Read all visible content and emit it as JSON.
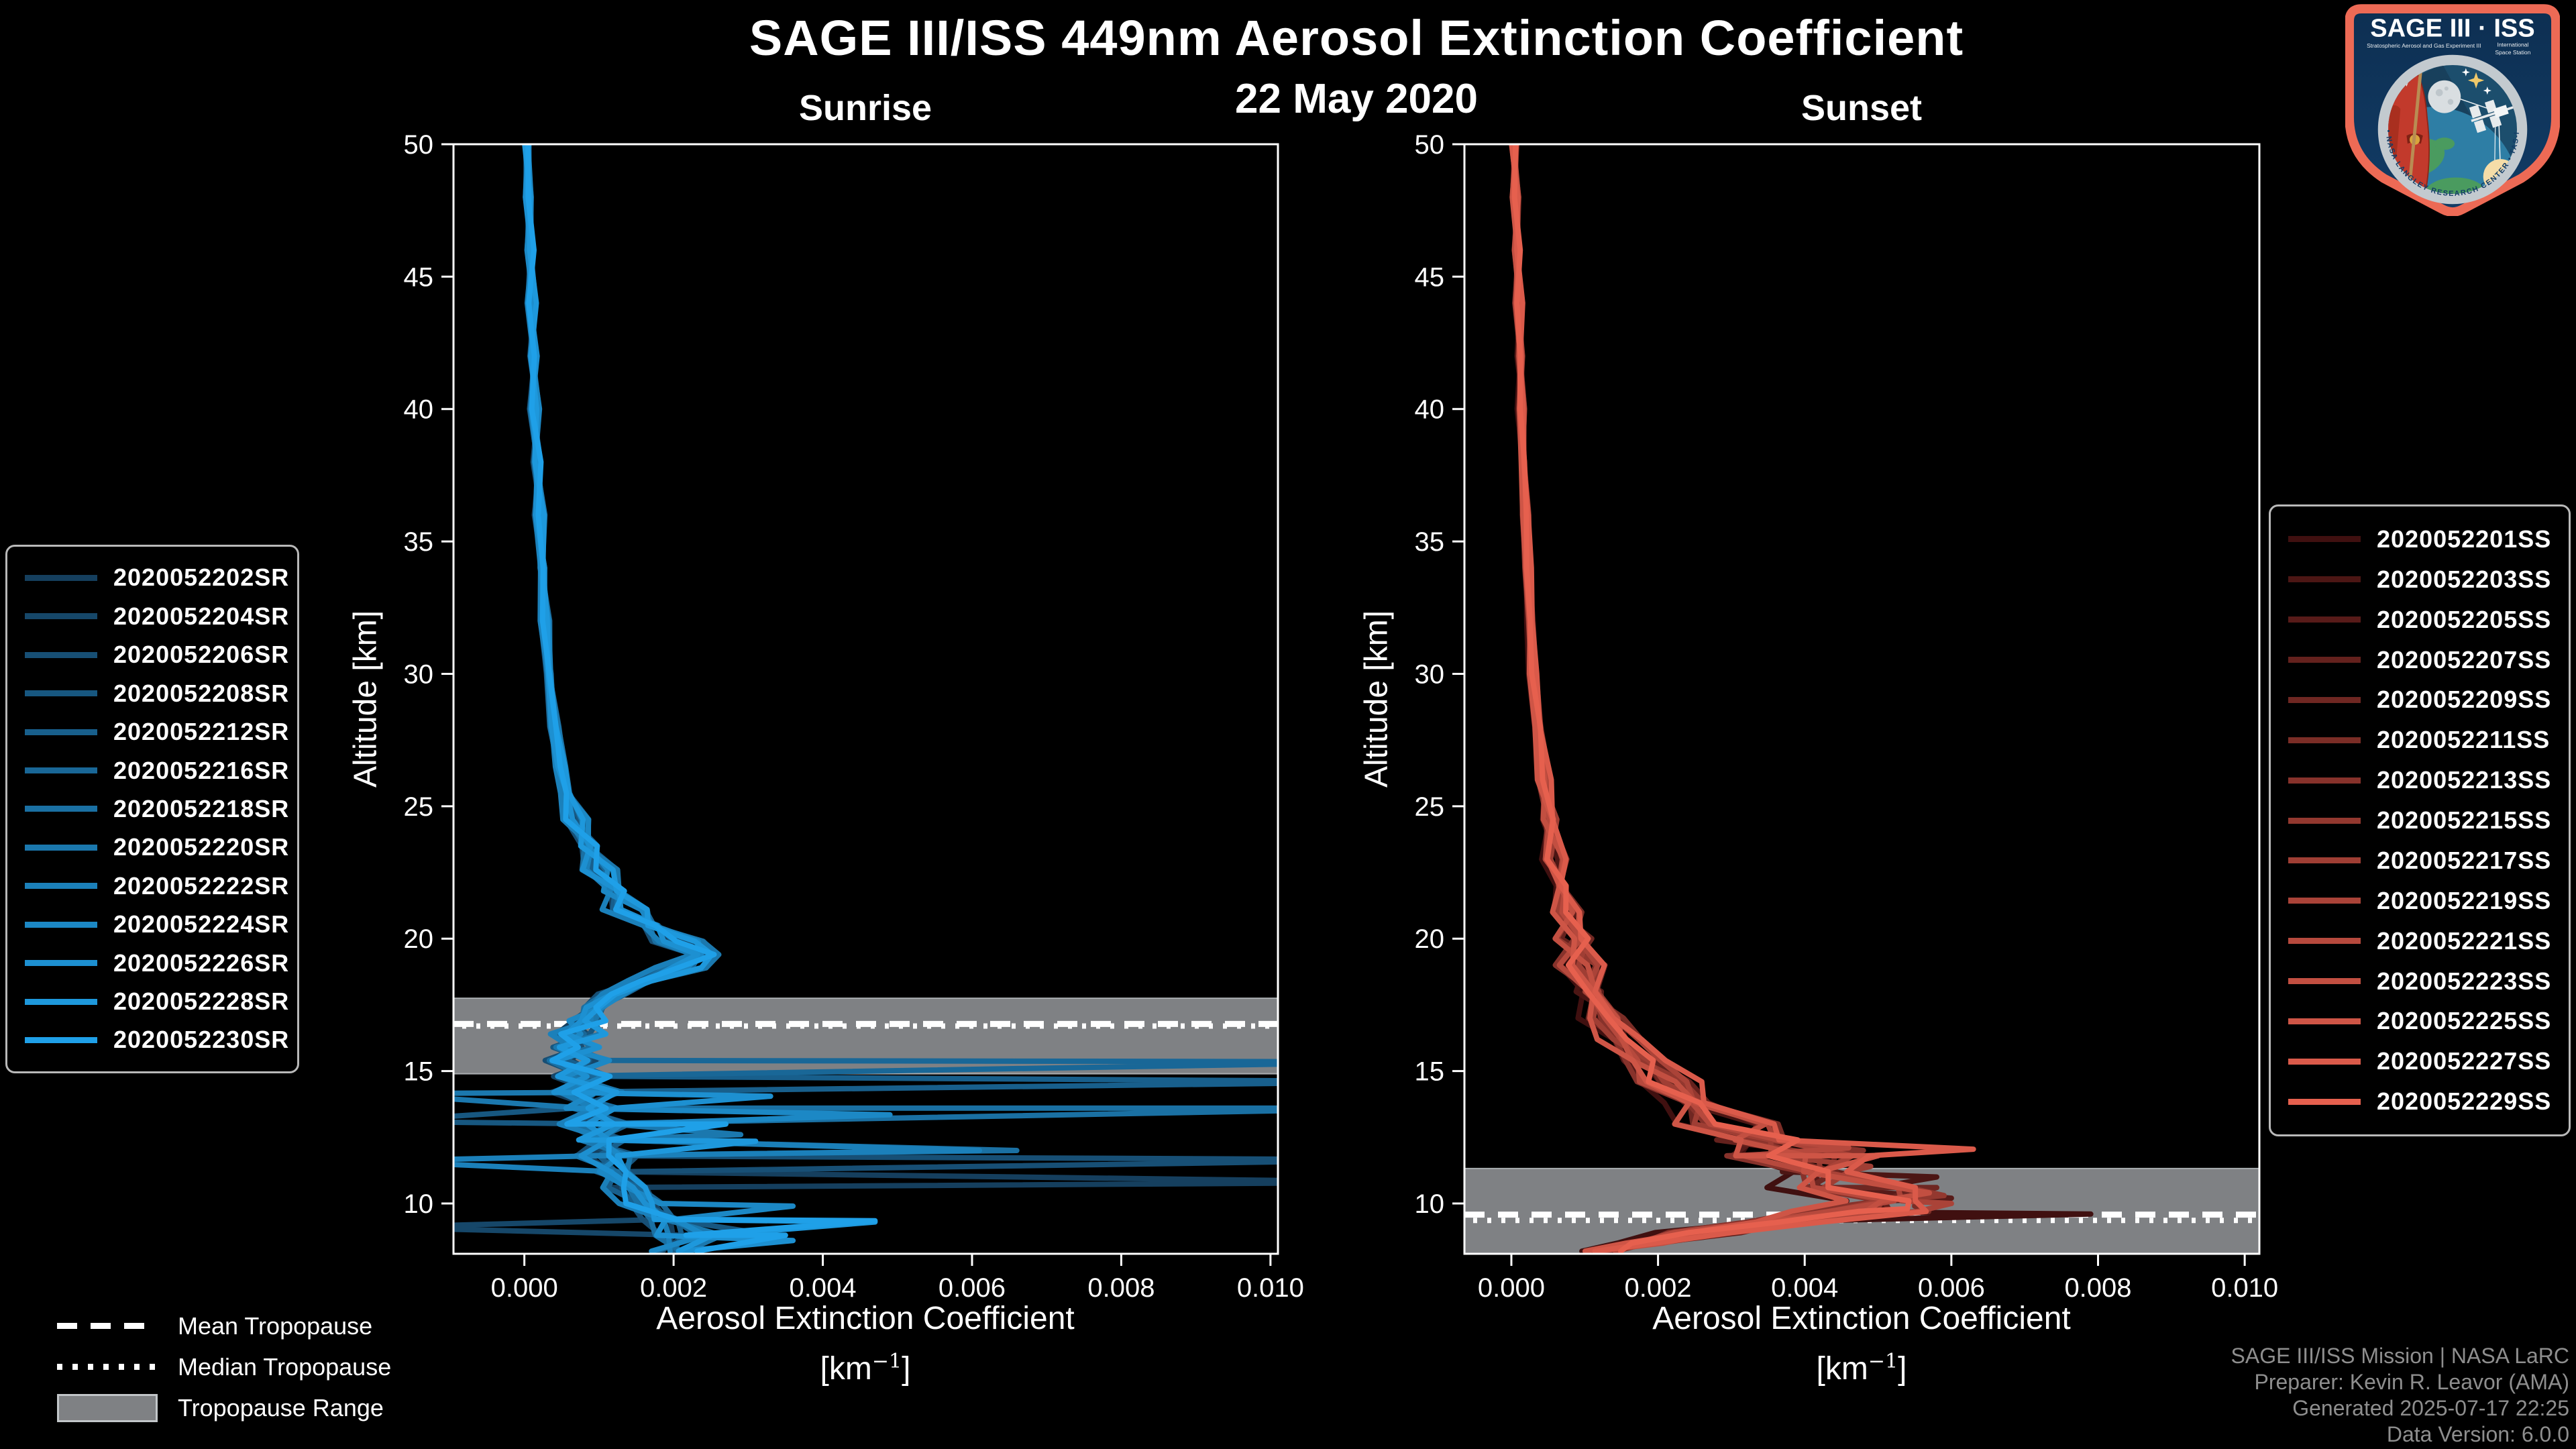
{
  "header": {
    "title": "SAGE III/ISS 449nm Aerosol Extinction Coefficient",
    "subtitle": "22 May 2020"
  },
  "axis": {
    "ylabel": "Altitude [km]",
    "xlabel": "Aerosol Extinction Coefficient",
    "unit_prefix": "[km",
    "unit_sup": "−1",
    "unit_suffix": "]"
  },
  "trop_legend": {
    "mean": "Mean Tropopause",
    "median": "Median Tropopause",
    "range": "Tropopause Range"
  },
  "footer": {
    "lines": [
      "SAGE III/ISS Mission | NASA LaRC",
      "Preparer: Kevin R. Leavor (AMA)",
      "Generated 2025-07-17 22:25",
      "Data Version: 6.0.0"
    ],
    "color": "#8e8e8e"
  },
  "logo": {
    "name": "SAGE III ISS mission patch",
    "line1": "SAGE III · ISS",
    "sub_left": "Stratospheric Aerosol and Gas Experiment III",
    "sub_right1": "International",
    "sub_right2": "Space Station",
    "ring_text": "BALL  •  NASA LANGLEY RESEARCH CENTER  •  TAS-I  •  ESA"
  },
  "colors": {
    "background": "#000000",
    "frame": "#ffffff",
    "band": "#7f8184",
    "band_edge": "#a9adb0",
    "trop_line": "#ffffff",
    "legend_border": "#b9b9b9",
    "footer_text": "#8e8e8e"
  },
  "chart_data": {
    "type": "line",
    "title": "SAGE III/ISS 449nm Aerosol Extinction Coefficient",
    "subtitle": "22 May 2020",
    "xlabel": "Aerosol Extinction Coefficient [km⁻¹]",
    "ylabel": "Altitude [km]",
    "ylim": [
      8.1,
      50
    ],
    "yticks": [
      10,
      15,
      20,
      25,
      30,
      35,
      40,
      45,
      50
    ],
    "xticks": {
      "values": [
        0,
        0.002,
        0.004,
        0.006,
        0.008,
        0.01
      ],
      "labels": [
        "0.000",
        "0.002",
        "0.004",
        "0.006",
        "0.008",
        "0.010"
      ]
    },
    "grid": false,
    "panels": [
      {
        "id": "sunrise",
        "title": "Sunrise",
        "xlim": [
          -0.00095,
          0.0101
        ],
        "tropopause": {
          "mean": 16.78,
          "median": 16.7,
          "range": [
            14.9,
            17.75
          ]
        },
        "amp_zones": [
          [
            25,
            4e-05
          ],
          [
            17,
            0.00013
          ],
          [
            -10,
            0.0003
          ]
        ],
        "base_profile": [
          [
            50,
            4e-05
          ],
          [
            48,
            6e-05
          ],
          [
            46,
            8e-05
          ],
          [
            44,
            0.0001
          ],
          [
            42,
            0.00012
          ],
          [
            40,
            0.00014
          ],
          [
            38,
            0.00017
          ],
          [
            36,
            0.0002
          ],
          [
            34,
            0.00024
          ],
          [
            32,
            0.00028
          ],
          [
            30,
            0.00033
          ],
          [
            28,
            0.0004
          ],
          [
            26.5,
            0.00048
          ],
          [
            25.5,
            0.00056
          ],
          [
            24.5,
            0.0007
          ],
          [
            23.5,
            0.00086
          ],
          [
            22.6,
            0.001
          ],
          [
            21.8,
            0.0012
          ],
          [
            21.1,
            0.0014
          ],
          [
            20.5,
            0.0017
          ],
          [
            19.9,
            0.0021
          ],
          [
            19.4,
            0.0024
          ],
          [
            18.9,
            0.0021
          ],
          [
            18.4,
            0.0016
          ],
          [
            17.9,
            0.0012
          ],
          [
            17.4,
            0.00095
          ],
          [
            16.9,
            0.0008
          ],
          [
            16.4,
            0.0007
          ],
          [
            15.9,
            0.00065
          ],
          [
            15.4,
            0.0007
          ],
          [
            14.8,
            0.00075
          ],
          [
            14.2,
            0.0008
          ],
          [
            13.6,
            0.0009
          ],
          [
            13,
            0.00095
          ],
          [
            12.4,
            0.001
          ],
          [
            11.8,
            0.0011
          ],
          [
            11.2,
            0.0012
          ],
          [
            10.6,
            0.0014
          ],
          [
            10,
            0.0016
          ],
          [
            9.4,
            0.0019
          ],
          [
            8.8,
            0.0022
          ],
          [
            8.2,
            0.002
          ]
        ],
        "series": [
          {
            "label": "2020052202SR",
            "color": "#153F5E",
            "mult": 0.94,
            "seed": 1,
            "spikes": [
              [
                10.8,
                0.012
              ]
            ]
          },
          {
            "label": "2020052204SR",
            "color": "#164769",
            "mult": 1.02,
            "seed": 2,
            "spikes": [
              [
                9.1,
                -0.002
              ]
            ]
          },
          {
            "label": "2020052206SR",
            "color": "#174F75",
            "mult": 0.9,
            "seed": 3,
            "spikes": [
              [
                11.65,
                0.012
              ]
            ]
          },
          {
            "label": "2020052208SR",
            "color": "#175780",
            "mult": 1.08,
            "seed": 4,
            "spikes": [
              [
                13.1,
                -0.002
              ],
              [
                8.9,
                0.0031
              ]
            ]
          },
          {
            "label": "2020052212SR",
            "color": "#185F8C",
            "mult": 0.97,
            "seed": 5,
            "spikes": [
              [
                14.6,
                0.012
              ]
            ]
          },
          {
            "label": "2020052216SR",
            "color": "#196797",
            "mult": 1.05,
            "seed": 6,
            "spikes": [
              [
                15.35,
                0.012
              ]
            ]
          },
          {
            "label": "2020052218SR",
            "color": "#1A70A3",
            "mult": 0.92,
            "seed": 7,
            "spikes": [
              [
                13.6,
                0.012
              ],
              [
                12.0,
                0.0066
              ]
            ]
          },
          {
            "label": "2020052220SR",
            "color": "#1B78AE",
            "mult": 1.1,
            "seed": 8,
            "spikes": [
              [
                14.15,
                -0.002
              ],
              [
                12.6,
                0.0029
              ]
            ]
          },
          {
            "label": "2020052222SR",
            "color": "#1B80BA",
            "mult": 0.88,
            "seed": 9,
            "spikes": [
              [
                12.0,
                0.0061
              ],
              [
                11.6,
                -0.002
              ]
            ]
          },
          {
            "label": "2020052224SR",
            "color": "#1C88C5",
            "mult": 1.04,
            "seed": 10,
            "spikes": [
              [
                13.35,
                0.0049
              ],
              [
                9.9,
                0.0036
              ]
            ]
          },
          {
            "label": "2020052226SR",
            "color": "#1D90D1",
            "mult": 0.96,
            "seed": 11,
            "spikes": [
              [
                14.05,
                0.0033
              ],
              [
                8.6,
                0.0036
              ]
            ]
          },
          {
            "label": "2020052228SR",
            "color": "#1E98DC",
            "mult": 1.07,
            "seed": 12,
            "spikes": [
              [
                12.35,
                0.0031
              ],
              [
                9.3,
                0.0047
              ]
            ]
          },
          {
            "label": "2020052230SR",
            "color": "#1FA0E8",
            "mult": 1.0,
            "seed": 13,
            "spikes": [
              [
                13.0,
                0.0027
              ],
              [
                9.35,
                0.0047
              ],
              [
                8.8,
                0.0035
              ]
            ]
          }
        ]
      },
      {
        "id": "sunset",
        "title": "Sunset",
        "xlim": [
          -0.00064,
          0.0102
        ],
        "tropopause": {
          "mean": 9.58,
          "median": 9.36,
          "range": [
            8.0,
            11.32
          ]
        },
        "amp_zones": [
          [
            25,
            3e-05
          ],
          [
            20,
            8e-05
          ],
          [
            13,
            0.00022
          ],
          [
            -10,
            0.00035
          ]
        ],
        "base_profile": [
          [
            50,
            4e-05
          ],
          [
            48,
            6e-05
          ],
          [
            46,
            8e-05
          ],
          [
            44,
            0.0001
          ],
          [
            42,
            0.00012
          ],
          [
            40,
            0.00014
          ],
          [
            38,
            0.00016
          ],
          [
            36,
            0.00019
          ],
          [
            34,
            0.00022
          ],
          [
            32,
            0.00026
          ],
          [
            30,
            0.0003
          ],
          [
            28,
            0.00036
          ],
          [
            26,
            0.00044
          ],
          [
            24.5,
            0.00052
          ],
          [
            23,
            0.0006
          ],
          [
            22,
            0.00068
          ],
          [
            21,
            0.00076
          ],
          [
            20,
            0.00085
          ],
          [
            19,
            0.00095
          ],
          [
            18,
            0.0011
          ],
          [
            17,
            0.0013
          ],
          [
            16.2,
            0.0015
          ],
          [
            15.4,
            0.0018
          ],
          [
            14.6,
            0.0021
          ],
          [
            13.8,
            0.0025
          ],
          [
            13,
            0.003
          ],
          [
            12.4,
            0.0034
          ],
          [
            11.8,
            0.0038
          ],
          [
            11.2,
            0.0042
          ],
          [
            10.6,
            0.0047
          ],
          [
            10.1,
            0.0051
          ],
          [
            9.7,
            0.0047
          ],
          [
            9.3,
            0.0036
          ],
          [
            8.9,
            0.0026
          ],
          [
            8.5,
            0.0018
          ],
          [
            8.2,
            0.0012
          ]
        ],
        "series": [
          {
            "label": "2020052201SS",
            "color": "#401010",
            "mult": 0.85,
            "seed": 21,
            "spikes": [
              [
                9.6,
                0.0079
              ]
            ]
          },
          {
            "label": "2020052203SS",
            "color": "#4C1614",
            "mult": 1.0,
            "seed": 22,
            "spikes": [
              [
                11.0,
                0.0058
              ]
            ]
          },
          {
            "label": "2020052205SS",
            "color": "#581B19",
            "mult": 0.92,
            "seed": 23,
            "spikes": [
              [
                10.2,
                0.006
              ]
            ]
          },
          {
            "label": "2020052207SS",
            "color": "#64211D",
            "mult": 1.08,
            "seed": 24,
            "spikes": [
              [
                12.4,
                0.0028
              ]
            ]
          },
          {
            "label": "2020052209SS",
            "color": "#6F2722",
            "mult": 0.96,
            "seed": 25,
            "spikes": [
              [
                10.6,
                0.0058
              ]
            ]
          },
          {
            "label": "2020052211SS",
            "color": "#7B2D26",
            "mult": 1.12,
            "seed": 26,
            "spikes": [
              [
                9.9,
                0.0055
              ]
            ]
          },
          {
            "label": "2020052213SS",
            "color": "#87322B",
            "mult": 0.9,
            "seed": 27,
            "spikes": [
              [
                12.0,
                0.0048
              ]
            ]
          },
          {
            "label": "2020052215SS",
            "color": "#93382F",
            "mult": 1.05,
            "seed": 28,
            "spikes": [
              [
                10.3,
                0.0059
              ]
            ]
          },
          {
            "label": "2020052217SS",
            "color": "#9F3E34",
            "mult": 0.98,
            "seed": 29,
            "spikes": [
              [
                11.4,
                0.0049
              ]
            ]
          },
          {
            "label": "2020052219SS",
            "color": "#AA4338",
            "mult": 1.1,
            "seed": 30,
            "spikes": [
              [
                10.0,
                0.006
              ]
            ]
          },
          {
            "label": "2020052221SS",
            "color": "#B6493D",
            "mult": 0.94,
            "seed": 31,
            "spikes": [
              [
                12.1,
                0.0046
              ]
            ]
          },
          {
            "label": "2020052223SS",
            "color": "#C24F41",
            "mult": 1.02,
            "seed": 32,
            "spikes": [
              [
                10.4,
                0.0057
              ]
            ]
          },
          {
            "label": "2020052225SS",
            "color": "#CE5546",
            "mult": 0.88,
            "seed": 33,
            "spikes": [
              [
                11.8,
                0.005
              ]
            ]
          },
          {
            "label": "2020052227SS",
            "color": "#DA5A4A",
            "mult": 1.15,
            "seed": 34,
            "spikes": [
              [
                12.05,
                0.0063
              ]
            ]
          },
          {
            "label": "2020052229SS",
            "color": "#E6604E",
            "mult": 1.0,
            "seed": 35,
            "spikes": [
              [
                9.8,
                0.0054
              ]
            ]
          }
        ]
      }
    ]
  }
}
